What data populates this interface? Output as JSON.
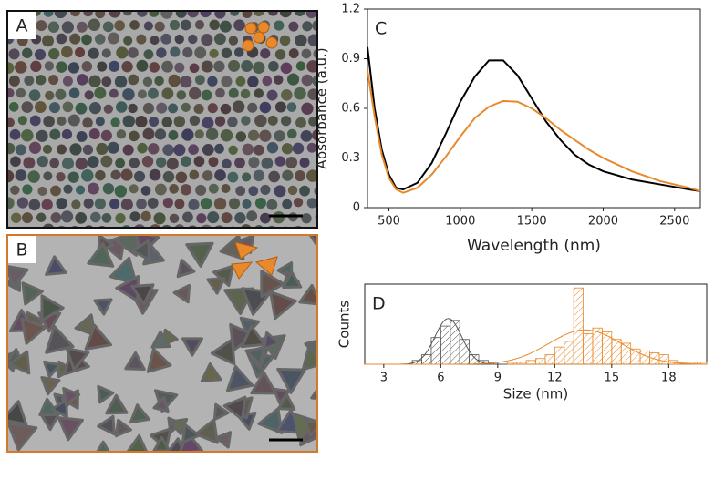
{
  "images": [
    {
      "label": "A"
    },
    {
      "label": "B"
    }
  ],
  "chart_data": [
    {
      "type": "line",
      "panel_label": "C",
      "xlabel": "Wavelength (nm)",
      "ylabel": "Absorbance (a.u.)",
      "x": [
        350,
        400,
        450,
        500,
        550,
        600,
        700,
        800,
        900,
        1000,
        1100,
        1200,
        1300,
        1400,
        1500,
        1600,
        1700,
        1800,
        1900,
        2000,
        2200,
        2400,
        2600,
        2680
      ],
      "series": [
        {
          "color": "#000000",
          "values": [
            0.97,
            0.6,
            0.35,
            0.2,
            0.12,
            0.11,
            0.15,
            0.27,
            0.45,
            0.64,
            0.79,
            0.89,
            0.89,
            0.8,
            0.66,
            0.52,
            0.41,
            0.32,
            0.26,
            0.22,
            0.17,
            0.14,
            0.11,
            0.1
          ]
        },
        {
          "color": "#e8892b",
          "values": [
            0.83,
            0.55,
            0.32,
            0.18,
            0.11,
            0.09,
            0.12,
            0.2,
            0.31,
            0.43,
            0.54,
            0.61,
            0.645,
            0.64,
            0.6,
            0.54,
            0.47,
            0.41,
            0.35,
            0.3,
            0.22,
            0.16,
            0.12,
            0.1
          ]
        }
      ],
      "xlim": [
        350,
        2680
      ],
      "xticks": [
        500,
        1000,
        1500,
        2000,
        2500
      ],
      "ylim": [
        0,
        1.2
      ],
      "yticks": [
        0,
        0.3,
        0.6,
        0.9,
        1.2
      ]
    },
    {
      "type": "histogram",
      "panel_label": "D",
      "xlabel": "Size (nm)",
      "ylabel": "Counts",
      "series": [
        {
          "color": "#555555",
          "bins": [
            4.5,
            5,
            5.5,
            6,
            6.5,
            7,
            7.5,
            8,
            8.5,
            9
          ],
          "counts": [
            2,
            5,
            14,
            20,
            23,
            13,
            5,
            2,
            1
          ],
          "fit": {
            "mean": 6.4,
            "sd": 0.7,
            "peak": 24
          }
        },
        {
          "color": "#e8892b",
          "bins": [
            9.5,
            10,
            10.5,
            11,
            11.5,
            12,
            12.5,
            13,
            13.5,
            14,
            14.5,
            15,
            15.5,
            16,
            16.5,
            17,
            17.5,
            18,
            18.5,
            19,
            19.5,
            20
          ],
          "counts": [
            1,
            1,
            2,
            3,
            5,
            9,
            12,
            40,
            16,
            19,
            17,
            13,
            11,
            8,
            7,
            6,
            5,
            2,
            1,
            1,
            1
          ],
          "fit": {
            "mean": 13.6,
            "sd": 1.9,
            "peak": 18
          }
        }
      ],
      "xlim": [
        2,
        20
      ],
      "xticks": [
        3,
        6,
        9,
        12,
        15,
        18
      ],
      "ylim": [
        0,
        42
      ]
    }
  ]
}
